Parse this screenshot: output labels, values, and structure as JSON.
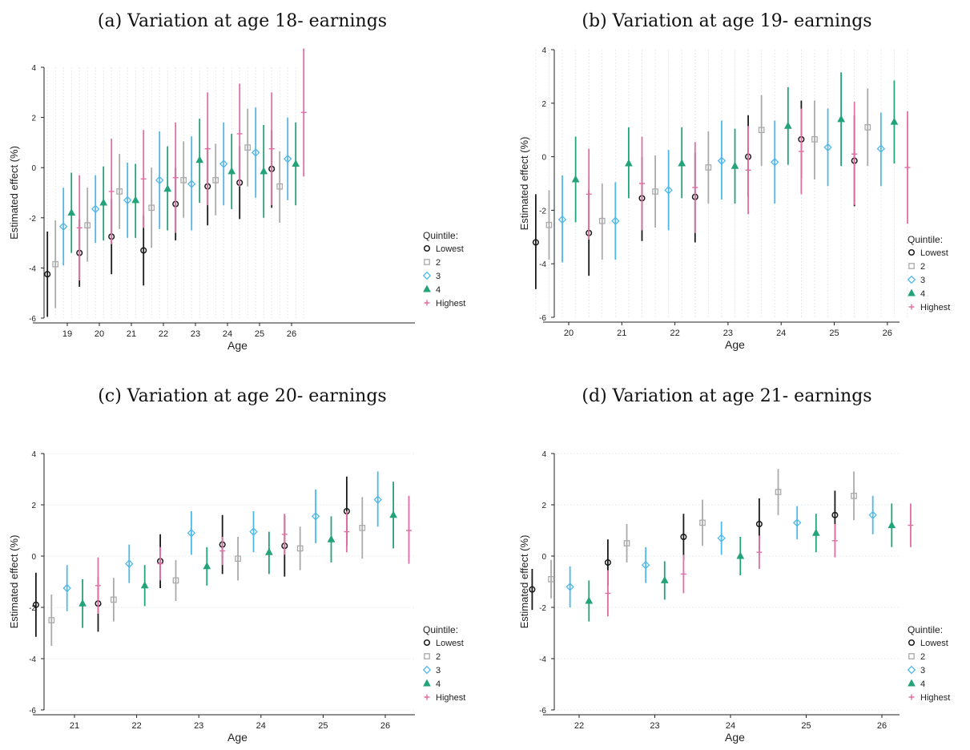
{
  "legend": {
    "title": "Quintile:",
    "items": [
      "Lowest",
      "2",
      "3",
      "4",
      "Highest"
    ],
    "colors": [
      "#1a1a1a",
      "#aaaaaa",
      "#4fb8e8",
      "#23a37a",
      "#e06fa5"
    ],
    "markers": [
      "circle",
      "square",
      "diamond",
      "triangle",
      "plus"
    ],
    "placement": "right"
  },
  "chart_data": [
    {
      "type": "scatter",
      "title": "(a) Variation at age 18- earnings",
      "xlabel": "Age",
      "ylabel": "Estimated effect (%)",
      "ylim": [
        -6,
        4
      ],
      "yticks": [
        -6,
        -4,
        -2,
        0,
        2,
        4
      ],
      "xcategories": [
        "19",
        "20",
        "21",
        "22",
        "23",
        "24",
        "25",
        "26"
      ],
      "grid": "vertical dotted",
      "series": [
        {
          "name": "Lowest",
          "estimate": [
            -4.25,
            -3.4,
            -2.75,
            -3.3,
            -1.45,
            -0.75,
            -0.6,
            -0.05
          ],
          "lower": [
            -5.95,
            -4.75,
            -4.25,
            -4.7,
            -2.9,
            -2.3,
            -2.05,
            -1.6
          ],
          "upper": [
            -2.55,
            -2.05,
            -1.25,
            -1.9,
            0.0,
            0.8,
            0.85,
            1.5
          ]
        },
        {
          "name": "2",
          "estimate": [
            -3.85,
            -2.3,
            -0.95,
            -1.6,
            -0.5,
            -0.5,
            0.8,
            -0.75
          ],
          "lower": [
            -5.6,
            -3.75,
            -2.45,
            -3.2,
            -2.0,
            -1.9,
            -0.75,
            -2.2
          ],
          "upper": [
            -2.1,
            -0.8,
            0.55,
            0.0,
            1.05,
            0.95,
            2.35,
            0.65
          ]
        },
        {
          "name": "3",
          "estimate": [
            -2.35,
            -1.65,
            -1.3,
            -0.5,
            -0.65,
            0.15,
            0.6,
            0.35
          ],
          "lower": [
            -3.9,
            -3.0,
            -2.8,
            -2.45,
            -2.5,
            -1.5,
            -1.2,
            -1.3
          ],
          "upper": [
            -0.8,
            -0.3,
            0.2,
            1.45,
            1.25,
            1.8,
            2.4,
            2.0
          ]
        },
        {
          "name": "4",
          "estimate": [
            -1.8,
            -1.4,
            -1.3,
            -0.85,
            0.3,
            -0.15,
            -0.15,
            0.15
          ],
          "lower": [
            -3.4,
            -2.9,
            -2.8,
            -2.5,
            -1.4,
            -1.65,
            -2.0,
            -1.5
          ],
          "upper": [
            -0.2,
            0.05,
            0.15,
            0.85,
            1.95,
            1.35,
            1.7,
            1.8
          ]
        },
        {
          "name": "Highest",
          "estimate": [
            -2.4,
            -0.95,
            -0.45,
            -0.4,
            0.75,
            1.35,
            0.75,
            2.2
          ],
          "lower": [
            -4.5,
            -3.05,
            -2.4,
            -2.6,
            -1.5,
            -0.75,
            -1.5,
            -0.35
          ],
          "upper": [
            -0.3,
            1.15,
            1.5,
            1.8,
            3.0,
            3.35,
            3.0,
            4.75
          ]
        }
      ]
    },
    {
      "type": "scatter",
      "title": "(b) Variation at age 19- earnings",
      "xlabel": "Age",
      "ylabel": "Estimated effect (%)",
      "ylim": [
        -6,
        4
      ],
      "yticks": [
        -6,
        -4,
        -2,
        0,
        2,
        4
      ],
      "xcategories": [
        "20",
        "21",
        "22",
        "23",
        "24",
        "25",
        "26"
      ],
      "grid": "vertical dotted",
      "series": [
        {
          "name": "Lowest",
          "estimate": [
            -3.2,
            -2.85,
            -1.55,
            -1.5,
            0.0,
            0.65,
            -0.15
          ],
          "lower": [
            -4.95,
            -4.45,
            -3.15,
            -3.2,
            -1.5,
            -0.8,
            -1.85
          ],
          "upper": [
            -1.4,
            -1.25,
            0.0,
            0.15,
            1.55,
            2.1,
            1.55
          ]
        },
        {
          "name": "2",
          "estimate": [
            -2.55,
            -2.4,
            -1.3,
            -0.4,
            1.0,
            0.65,
            1.1
          ],
          "lower": [
            -3.85,
            -3.85,
            -2.65,
            -1.75,
            -0.35,
            -0.85,
            -0.35
          ],
          "upper": [
            -1.25,
            -1.0,
            0.05,
            0.95,
            2.3,
            2.1,
            2.55
          ]
        },
        {
          "name": "3",
          "estimate": [
            -2.35,
            -2.4,
            -1.25,
            -0.15,
            -0.2,
            0.35,
            0.3
          ],
          "lower": [
            -3.95,
            -3.85,
            -2.75,
            -1.6,
            -1.75,
            -1.1,
            -1.1
          ],
          "upper": [
            -0.7,
            -0.95,
            0.25,
            1.35,
            1.35,
            1.8,
            1.65
          ]
        },
        {
          "name": "4",
          "estimate": [
            -0.85,
            -0.25,
            -0.25,
            -0.35,
            1.15,
            1.4,
            1.3
          ],
          "lower": [
            -2.45,
            -1.55,
            -1.55,
            -1.75,
            -0.3,
            -0.35,
            -0.25
          ],
          "upper": [
            0.75,
            1.1,
            1.1,
            1.05,
            2.6,
            3.15,
            2.85
          ]
        },
        {
          "name": "Highest",
          "estimate": [
            -1.4,
            -1.0,
            -1.15,
            -0.5,
            0.2,
            0.1,
            -0.4
          ],
          "lower": [
            -3.1,
            -2.75,
            -2.85,
            -2.15,
            -1.4,
            -1.8,
            -2.5
          ],
          "upper": [
            0.3,
            0.75,
            0.55,
            1.15,
            1.8,
            2.05,
            1.7
          ]
        }
      ]
    },
    {
      "type": "scatter",
      "title": "(c) Variation at age 20- earnings",
      "xlabel": "Age",
      "ylabel": "Estimated effect (%)",
      "ylim": [
        -6,
        4
      ],
      "yticks": [
        -6,
        -4,
        -2,
        0,
        2,
        4
      ],
      "xcategories": [
        "21",
        "22",
        "23",
        "24",
        "25",
        "26"
      ],
      "grid": "horizontal dotted",
      "series": [
        {
          "name": "Lowest",
          "estimate": [
            -1.9,
            -1.85,
            -0.2,
            0.45,
            0.4,
            1.75
          ],
          "lower": [
            -3.15,
            -2.95,
            -1.25,
            -0.7,
            -0.8,
            0.4
          ],
          "upper": [
            -0.65,
            -0.8,
            0.85,
            1.6,
            1.6,
            3.1
          ]
        },
        {
          "name": "2",
          "estimate": [
            -2.5,
            -1.7,
            -0.95,
            -0.1,
            0.3,
            1.1
          ],
          "lower": [
            -3.5,
            -2.55,
            -1.75,
            -0.95,
            -0.55,
            -0.1
          ],
          "upper": [
            -1.5,
            -0.85,
            -0.15,
            0.75,
            1.15,
            2.3
          ]
        },
        {
          "name": "3",
          "estimate": [
            -1.25,
            -0.3,
            0.9,
            0.95,
            1.55,
            2.2
          ],
          "lower": [
            -2.15,
            -1.05,
            0.05,
            0.15,
            0.5,
            1.15
          ],
          "upper": [
            -0.35,
            0.45,
            1.75,
            1.75,
            2.6,
            3.3
          ]
        },
        {
          "name": "4",
          "estimate": [
            -1.85,
            -1.15,
            -0.4,
            0.15,
            0.65,
            1.6
          ],
          "lower": [
            -2.8,
            -1.95,
            -1.15,
            -0.7,
            -0.25,
            0.3
          ],
          "upper": [
            -0.9,
            -0.35,
            0.35,
            0.95,
            1.55,
            2.9
          ]
        },
        {
          "name": "Highest",
          "estimate": [
            -1.15,
            -0.3,
            0.2,
            0.85,
            0.95,
            1.0
          ],
          "lower": [
            -2.25,
            -0.95,
            -0.35,
            0.05,
            0.15,
            -0.3
          ],
          "upper": [
            -0.05,
            0.35,
            0.75,
            1.65,
            1.75,
            2.35
          ]
        }
      ]
    },
    {
      "type": "scatter",
      "title": "(d) Variation at age 21- earnings",
      "xlabel": "Age",
      "ylabel": "Estimated effect (%)",
      "ylim": [
        -6,
        4
      ],
      "yticks": [
        -6,
        -4,
        -2,
        0,
        2,
        4
      ],
      "xcategories": [
        "22",
        "23",
        "24",
        "25",
        "26"
      ],
      "grid": "horizontal dotted",
      "series": [
        {
          "name": "Lowest",
          "estimate": [
            -1.3,
            -0.25,
            0.75,
            1.25,
            1.6
          ],
          "lower": [
            -2.1,
            -1.15,
            -0.15,
            0.25,
            0.65
          ],
          "upper": [
            -0.5,
            0.65,
            1.65,
            2.25,
            2.55
          ]
        },
        {
          "name": "2",
          "estimate": [
            -0.9,
            0.5,
            1.3,
            2.5,
            2.35
          ],
          "lower": [
            -1.65,
            -0.25,
            0.4,
            1.6,
            1.4
          ],
          "upper": [
            -0.15,
            1.25,
            2.2,
            3.4,
            3.3
          ]
        },
        {
          "name": "3",
          "estimate": [
            -1.2,
            -0.35,
            0.7,
            1.3,
            1.6
          ],
          "lower": [
            -2.0,
            -1.05,
            0.05,
            0.65,
            0.85
          ],
          "upper": [
            -0.4,
            0.35,
            1.35,
            1.95,
            2.35
          ]
        },
        {
          "name": "4",
          "estimate": [
            -1.75,
            -0.95,
            0.0,
            0.9,
            1.2
          ],
          "lower": [
            -2.55,
            -1.7,
            -0.75,
            0.15,
            0.35
          ],
          "upper": [
            -0.95,
            -0.2,
            0.75,
            1.65,
            2.05
          ]
        },
        {
          "name": "Highest",
          "estimate": [
            -1.45,
            -0.7,
            0.15,
            0.6,
            1.2
          ],
          "lower": [
            -2.35,
            -1.45,
            -0.5,
            -0.05,
            0.35
          ],
          "upper": [
            -0.55,
            0.05,
            0.8,
            1.25,
            2.05
          ]
        }
      ]
    }
  ]
}
